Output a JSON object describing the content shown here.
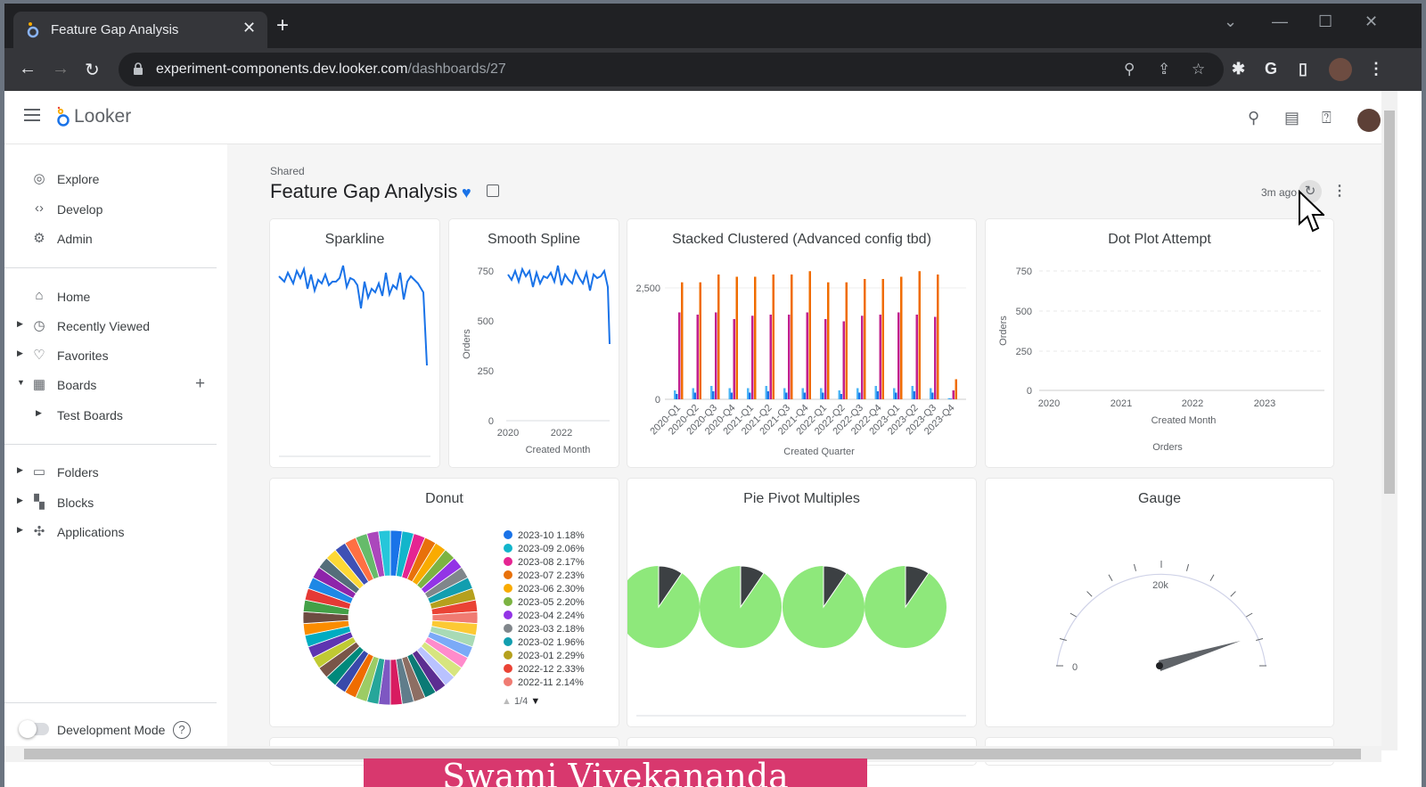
{
  "browser": {
    "tab_title": "Feature Gap Analysis",
    "tab_close": "✕",
    "new_tab": "+",
    "url_domain": "experiment-components.dev.looker.com",
    "url_path": "/dashboards/27"
  },
  "looker": {
    "brand": "Looker"
  },
  "sidebar": {
    "group1": [
      {
        "label": "Explore",
        "icon": "compass-icon"
      },
      {
        "label": "Develop",
        "icon": "code-icon"
      },
      {
        "label": "Admin",
        "icon": "admin-gear-icon"
      }
    ],
    "group2": [
      {
        "label": "Home",
        "icon": "home-icon"
      },
      {
        "label": "Recently Viewed",
        "icon": "clock-icon"
      },
      {
        "label": "Favorites",
        "icon": "heart-icon"
      },
      {
        "label": "Boards",
        "icon": "board-icon"
      },
      {
        "label": "Test Boards"
      }
    ],
    "group3": [
      {
        "label": "Folders",
        "icon": "folder-icon"
      },
      {
        "label": "Blocks",
        "icon": "blocks-icon"
      },
      {
        "label": "Applications",
        "icon": "puzzle-icon"
      }
    ],
    "dev_mode_label": "Development Mode"
  },
  "dashboard": {
    "breadcrumb": "Shared",
    "title": "Feature Gap Analysis",
    "updated": "3m ago"
  },
  "tiles": {
    "sparkline": {
      "title": "Sparkline"
    },
    "smooth_spline": {
      "title": "Smooth Spline",
      "ylabel": "Orders",
      "xlabel": "Created Month",
      "yticks": [
        "750",
        "500",
        "250",
        "0"
      ],
      "xticks": [
        "2020",
        "2022"
      ]
    },
    "stacked": {
      "title": "Stacked Clustered (Advanced config tbd)",
      "xlabel": "Created Quarter",
      "yticks": [
        "2,500",
        "0"
      ],
      "categories": [
        "2020-Q1",
        "2020-Q2",
        "2020-Q3",
        "2020-Q4",
        "2021-Q1",
        "2021-Q2",
        "2021-Q3",
        "2021-Q4",
        "2022-Q1",
        "2022-Q2",
        "2022-Q3",
        "2022-Q4",
        "2023-Q1",
        "2023-Q2",
        "2023-Q3",
        "2023-Q4"
      ]
    },
    "dot_plot": {
      "title": "Dot Plot Attempt",
      "ylabel": "Orders",
      "xlabel": "Created Month",
      "legend": "Orders",
      "yticks": [
        "750",
        "500",
        "250",
        "0"
      ],
      "xticks": [
        "2020",
        "2021",
        "2022",
        "2023"
      ]
    },
    "donut": {
      "title": "Donut",
      "pager": "1/4",
      "legend": [
        "2023-10 1.18%",
        "2023-09 2.06%",
        "2023-08 2.17%",
        "2023-07 2.23%",
        "2023-06 2.30%",
        "2023-05 2.20%",
        "2023-04 2.24%",
        "2023-03 2.18%",
        "2023-02 1.96%",
        "2023-01 2.29%",
        "2022-12 2.33%",
        "2022-11 2.14%"
      ],
      "legend_colors": [
        "#1a73e8",
        "#12b5cb",
        "#e52592",
        "#e8710a",
        "#f9ab00",
        "#7cb342",
        "#9334e6",
        "#80868b",
        "#129eaf",
        "#b5a01d",
        "#ea4335",
        "#f07b72"
      ]
    },
    "pie_pivot": {
      "title": "Pie Pivot Multiples"
    },
    "gauge": {
      "title": "Gauge",
      "min_label": "0",
      "mid_label": "20k"
    }
  },
  "banner_text": "Swami Vivekananda",
  "colors": {
    "accent": "#1a73e8",
    "pie_green": "#8ee87b",
    "pie_dark": "#3c4043",
    "bar_orange": "#f06c00",
    "bar_magenta": "#c2208e",
    "bar_blue": "#1a73e8"
  }
}
